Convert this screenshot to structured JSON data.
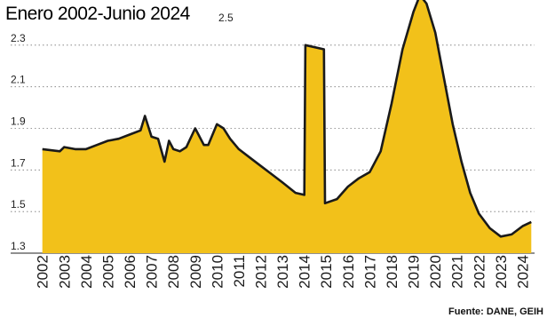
{
  "chart_data": {
    "type": "area",
    "title": "Enero 2002-Junio 2024",
    "source": "Fuente: DANE, GEIH",
    "ylim": [
      1.3,
      2.5
    ],
    "yticks": [
      1.3,
      1.5,
      1.7,
      1.9,
      2.1,
      2.3,
      2.5
    ],
    "grid": true,
    "fill_color": "#F2C11A",
    "line_color": "#1a1a1a",
    "x_tick_labels": [
      "2002",
      "2003",
      "2004",
      "2005",
      "2006",
      "2007",
      "2008",
      "2009",
      "2010",
      "2011",
      "2012",
      "2013",
      "2014",
      "2015",
      "2016",
      "2017",
      "2018",
      "2019",
      "2020",
      "2021",
      "2022",
      "2023",
      "2024"
    ],
    "series": [
      {
        "x": [
          2002.0,
          2002.8,
          2003.0,
          2003.5,
          2004.0,
          2004.5,
          2005.0,
          2005.5,
          2006.0,
          2006.5,
          2006.7,
          2007.0,
          2007.3,
          2007.6,
          2007.8,
          2008.0,
          2008.3,
          2008.6,
          2009.0,
          2009.4,
          2009.6,
          2010.0,
          2010.3,
          2010.6,
          2011.0,
          2011.5,
          2012.0,
          2012.5,
          2013.0,
          2013.6,
          2014.0,
          2014.05,
          2014.9,
          2014.95,
          2015.5,
          2016.0,
          2016.5,
          2017.0,
          2017.5,
          2018.0,
          2018.5,
          2019.0,
          2019.3,
          2019.6,
          2020.0,
          2020.4,
          2020.8,
          2021.2,
          2021.6,
          2022.0,
          2022.5,
          2023.0,
          2023.5,
          2024.0,
          2024.4
        ],
        "values": [
          1.8,
          1.79,
          1.81,
          1.8,
          1.8,
          1.82,
          1.84,
          1.85,
          1.87,
          1.89,
          1.96,
          1.86,
          1.85,
          1.74,
          1.84,
          1.8,
          1.79,
          1.81,
          1.9,
          1.82,
          1.82,
          1.92,
          1.9,
          1.85,
          1.8,
          1.76,
          1.72,
          1.68,
          1.64,
          1.59,
          1.58,
          2.3,
          2.28,
          1.54,
          1.56,
          1.62,
          1.66,
          1.69,
          1.79,
          2.02,
          2.28,
          2.46,
          2.54,
          2.5,
          2.36,
          2.14,
          1.92,
          1.74,
          1.59,
          1.49,
          1.42,
          1.38,
          1.39,
          1.43,
          1.45
        ]
      }
    ]
  }
}
